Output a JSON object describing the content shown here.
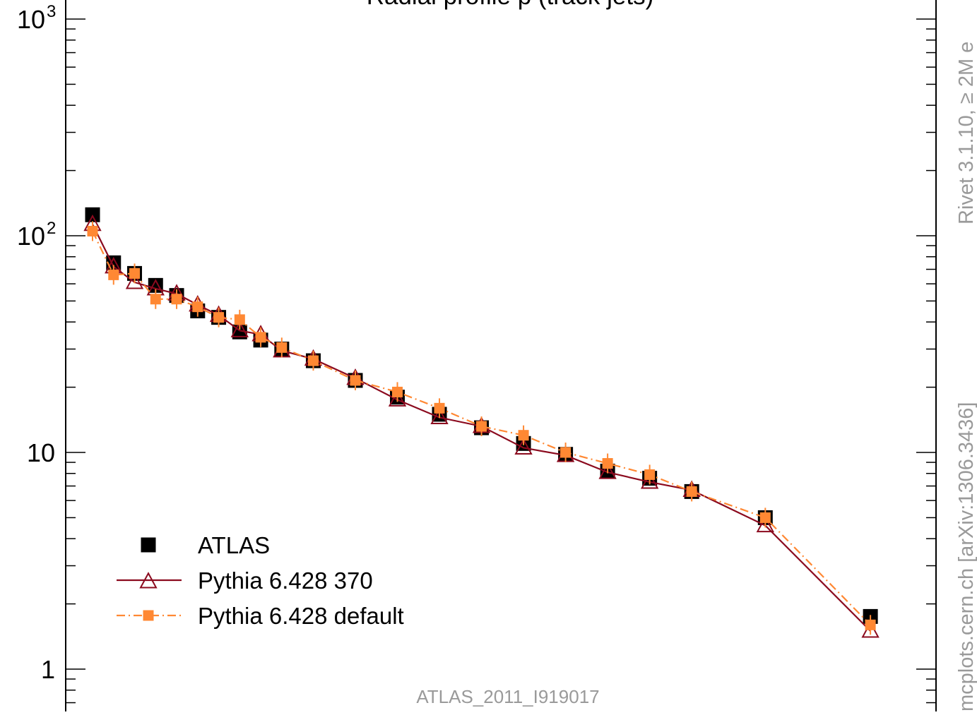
{
  "chart_data": {
    "type": "line",
    "title": "Radial profile p (track jets)",
    "watermark": "ATLAS_2011_I919017",
    "side_label": "mcplots.cern.ch [arXiv:1306.3436]",
    "side_label_2": "Rivet 3.1.10, ≥ 2M e",
    "y_scale": "log",
    "ylim": [
      0.8,
      1000
    ],
    "y_ticks": [
      {
        "value": 1,
        "label": "1",
        "exp": ""
      },
      {
        "value": 10,
        "label": "10",
        "exp": ""
      },
      {
        "value": 100,
        "label": "10",
        "exp": "2"
      },
      {
        "value": 1000,
        "label": "10",
        "exp": "3"
      }
    ],
    "legend_position": "bottom-left",
    "series": [
      {
        "name": "ATLAS",
        "style": "marker",
        "color": "#000000",
        "x": [
          0.005,
          0.015,
          0.025,
          0.035,
          0.045,
          0.055,
          0.065,
          0.075,
          0.085,
          0.095,
          0.11,
          0.13,
          0.15,
          0.17,
          0.19,
          0.21,
          0.23,
          0.25,
          0.27,
          0.29,
          0.325,
          0.375
        ],
        "values": [
          125,
          75,
          67,
          59,
          53,
          45,
          42,
          36,
          33,
          30,
          26.5,
          21.5,
          18,
          15,
          13,
          11,
          9.8,
          8.2,
          7.6,
          6.6,
          5.0,
          1.75
        ]
      },
      {
        "name": "Pythia 6.428 370",
        "style": "solid-triangle",
        "color": "#8b0a1e",
        "x": [
          0.005,
          0.015,
          0.025,
          0.035,
          0.045,
          0.055,
          0.065,
          0.075,
          0.085,
          0.095,
          0.11,
          0.13,
          0.15,
          0.17,
          0.19,
          0.21,
          0.23,
          0.25,
          0.27,
          0.29,
          0.325,
          0.375
        ],
        "values": [
          113,
          72,
          61,
          57,
          54,
          48,
          43,
          36.5,
          35,
          29.5,
          27,
          22,
          17.5,
          14.5,
          13.2,
          10.5,
          9.7,
          8.1,
          7.3,
          6.7,
          4.6,
          1.5
        ]
      },
      {
        "name": "Pythia 6.428 default",
        "style": "dashdot-square",
        "color": "#ff8833",
        "x": [
          0.005,
          0.015,
          0.025,
          0.035,
          0.045,
          0.055,
          0.065,
          0.075,
          0.085,
          0.095,
          0.11,
          0.13,
          0.15,
          0.17,
          0.19,
          0.21,
          0.23,
          0.25,
          0.27,
          0.29,
          0.325,
          0.375
        ],
        "values": [
          105,
          66,
          67,
          51,
          51,
          47,
          42,
          41,
          34,
          30.5,
          26.5,
          21.5,
          19,
          16,
          13.2,
          12,
          10,
          8.9,
          7.9,
          6.6,
          5.0,
          1.6
        ]
      }
    ]
  }
}
